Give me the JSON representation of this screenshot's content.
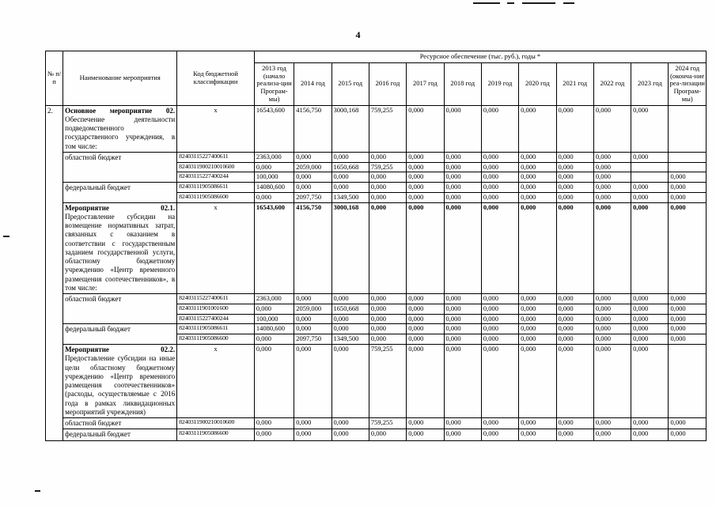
{
  "page": {
    "number": "4"
  },
  "table": {
    "header": {
      "col_num": "№ п/п",
      "col_name": "Наименование мероприятия",
      "col_code": "Код бюджетной классификации",
      "resource_title": "Ресурсное обеспечение (тыс. руб.), годы *",
      "years": [
        "2013 год (начало реализа-ции Програм-мы)",
        "2014 год",
        "2015 год",
        "2016 год",
        "2017 год",
        "2018 год",
        "2019 год",
        "2020 год",
        "2021 год",
        "2022 год",
        "2023 год",
        "2024 год (оконча-ние реа-лизации Програм-мы)"
      ]
    },
    "rows": [
      {
        "num": "2.",
        "name_title": "Основное мероприятие 02.",
        "name_text": "Обеспечение деятельности подведомственного государственного учреждения, в том числе:",
        "code": "х",
        "values": [
          "16543,600",
          "4156,750",
          "3000,168",
          "759,255",
          "0,000",
          "0,000",
          "0,000",
          "0,000",
          "0,000",
          "0,000",
          "0,000",
          ""
        ]
      },
      {
        "name": "областной бюджет",
        "name_rowspan": 3,
        "code": "82403115227400611",
        "values": [
          "2363,000",
          "0,000",
          "0,000",
          "0,000",
          "0,000",
          "0,000",
          "0,000",
          "0,000",
          "0,000",
          "0,000",
          "0,000",
          ""
        ]
      },
      {
        "code": "8240311900210010600",
        "values": [
          "0,000",
          "2059,000",
          "1650,668",
          "759,255",
          "0,000",
          "0,000",
          "0,000",
          "0,000",
          "0,000",
          "0,000",
          "",
          ""
        ]
      },
      {
        "code": "82403115227400244",
        "values": [
          "100,000",
          "0,000",
          "0,000",
          "0,000",
          "0,000",
          "0,000",
          "0,000",
          "0,000",
          "0,000",
          "0,000",
          "",
          "0,000"
        ]
      },
      {
        "name": "федеральный бюджет",
        "name_rowspan": 2,
        "code": "82403111905086611",
        "values": [
          "14080,600",
          "0,000",
          "0,000",
          "0,000",
          "0,000",
          "0,000",
          "0,000",
          "0,000",
          "0,000",
          "0,000",
          "0,000",
          "0,000"
        ]
      },
      {
        "code": "82403111905086600",
        "values": [
          "0,000",
          "2097,750",
          "1349,500",
          "0,000",
          "0,000",
          "0,000",
          "0,000",
          "0,000",
          "0,000",
          "0,000",
          "0,000",
          "0,000"
        ]
      },
      {
        "name_title": "Мероприятие 02.1.",
        "name_text": "Предоставление субсидии на возмещение нормативных затрат, связанных с оказанием в соответствии с государственным заданием государственной услуги, областному бюджетному учреждению «Центр временного размещения соотечественников», в том числе:",
        "code": "х",
        "bold_values": true,
        "values": [
          "16543,600",
          "4156,750",
          "3000,168",
          "0,000",
          "0,000",
          "0,000",
          "0,000",
          "0,000",
          "0,000",
          "0,000",
          "0,000",
          "0,000"
        ]
      },
      {
        "name": "областной бюджет",
        "name_rowspan": 3,
        "code": "82403115227400611",
        "values": [
          "2363,000",
          "0,000",
          "0,000",
          "0,000",
          "0,000",
          "0,000",
          "0,000",
          "0,000",
          "0,000",
          "0,000",
          "0,000",
          "0,000"
        ]
      },
      {
        "code": "82403111901001600",
        "values": [
          "0,000",
          "2059,000",
          "1650,668",
          "0,000",
          "0,000",
          "0,000",
          "0,000",
          "0,000",
          "0,000",
          "0,000",
          "0,000",
          "0,000"
        ]
      },
      {
        "code": "82403115227400244",
        "values": [
          "100,000",
          "0,000",
          "0,000",
          "0,000",
          "0,000",
          "0,000",
          "0,000",
          "0,000",
          "0,000",
          "0,000",
          "0,000",
          "0,000"
        ]
      },
      {
        "name": "федеральный бюджет",
        "name_rowspan": 2,
        "code": "82403111905086611",
        "values": [
          "14080,600",
          "0,000",
          "0,000",
          "0,000",
          "0,000",
          "0,000",
          "0,000",
          "0,000",
          "0,000",
          "0,000",
          "0,000",
          "0,000"
        ]
      },
      {
        "code": "82403111905086600",
        "values": [
          "0,000",
          "2097,750",
          "1349,500",
          "0,000",
          "0,000",
          "0,000",
          "0,000",
          "0,000",
          "0,000",
          "0,000",
          "0,000",
          "0,000"
        ]
      },
      {
        "name_title": "Мероприятие 02.2.",
        "name_text": "Предоставление субсидии на иные цели областному бюджетному учреждению «Центр временного размещения соотечественников» (расходы, осуществляемые с 2016 года в рамках ликвидационных мероприятий учреждения)",
        "code": "х",
        "values": [
          "0,000",
          "0,000",
          "0,000",
          "759,255",
          "0,000",
          "0,000",
          "0,000",
          "0,000",
          "0,000",
          "0,000",
          "0,000",
          ""
        ]
      },
      {
        "name": "областной бюджет",
        "code": "8240311900210010600",
        "values": [
          "0,000",
          "0,000",
          "0,000",
          "759,255",
          "0,000",
          "0,000",
          "0,000",
          "0,000",
          "0,000",
          "0,000",
          "0,000",
          "0,000"
        ]
      },
      {
        "name": "федеральный бюджет",
        "code": "82403111905086600",
        "values": [
          "0,000",
          "0,000",
          "0,000",
          "0,000",
          "0,000",
          "0,000",
          "0,000",
          "0,000",
          "0,000",
          "0,000",
          "0,000",
          "0,000"
        ]
      }
    ]
  }
}
